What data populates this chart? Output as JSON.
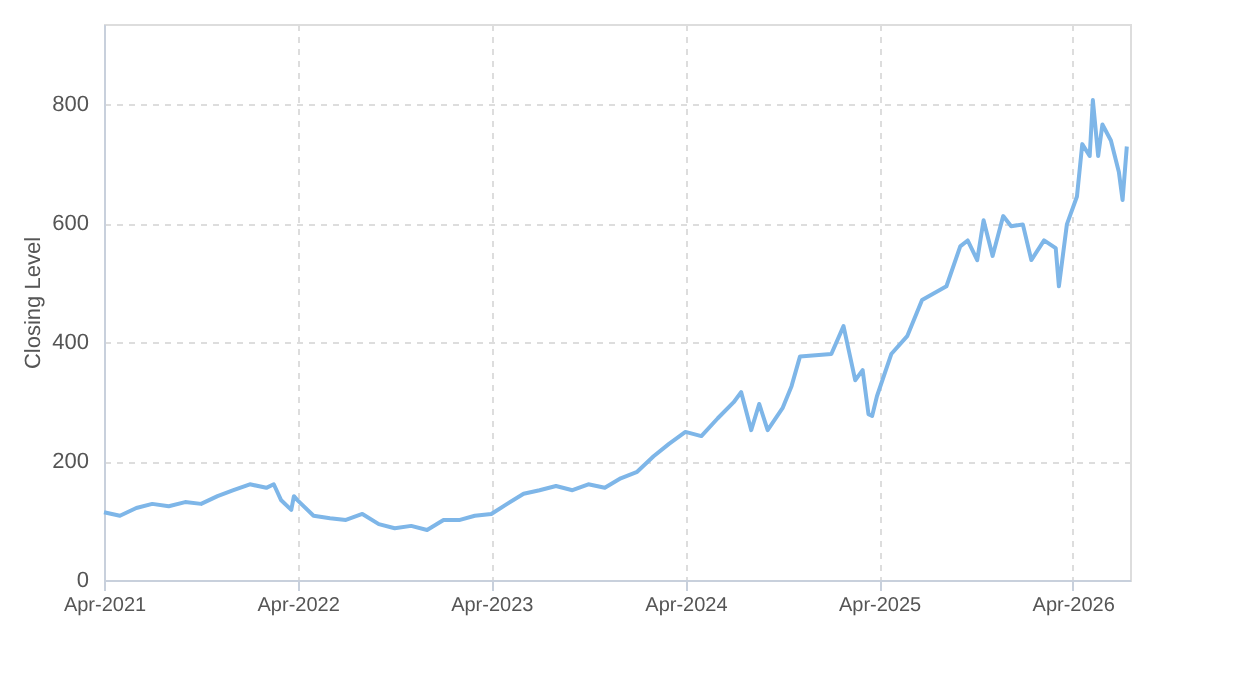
{
  "chart_data": {
    "type": "line",
    "ylabel": "Closing Level",
    "ylim": [
      0,
      935
    ],
    "yticks": [
      0,
      200,
      400,
      600,
      800
    ],
    "xlim": [
      "2021-04-01",
      "2026-07-18"
    ],
    "xticks": [
      {
        "value": "2021-04-01",
        "label": "Apr-2021"
      },
      {
        "value": "2022-04-01",
        "label": "Apr-2022"
      },
      {
        "value": "2023-04-01",
        "label": "Apr-2023"
      },
      {
        "value": "2024-04-01",
        "label": "Apr-2024"
      },
      {
        "value": "2025-04-01",
        "label": "Apr-2025"
      },
      {
        "value": "2026-04-01",
        "label": "Apr-2026"
      }
    ],
    "grid": true,
    "line_style": "solid",
    "marker": "none",
    "x": [
      "2021-04-01",
      "2021-05-01",
      "2021-06-01",
      "2021-07-01",
      "2021-08-01",
      "2021-09-01",
      "2021-10-01",
      "2021-11-01",
      "2021-12-01",
      "2022-01-01",
      "2022-02-01",
      "2022-02-15",
      "2022-03-01",
      "2022-03-20",
      "2022-03-25",
      "2022-04-01",
      "2022-05-01",
      "2022-06-01",
      "2022-07-01",
      "2022-08-01",
      "2022-09-01",
      "2022-10-01",
      "2022-11-01",
      "2022-12-01",
      "2023-01-01",
      "2023-02-01",
      "2023-03-01",
      "2023-04-01",
      "2023-05-01",
      "2023-06-01",
      "2023-07-01",
      "2023-08-01",
      "2023-09-01",
      "2023-10-01",
      "2023-11-01",
      "2023-12-01",
      "2024-01-01",
      "2024-02-01",
      "2024-03-01",
      "2024-04-01",
      "2024-05-01",
      "2024-06-01",
      "2024-07-01",
      "2024-07-15",
      "2024-08-03",
      "2024-08-18",
      "2024-09-03",
      "2024-10-01",
      "2024-10-18",
      "2024-11-03",
      "2025-01-01",
      "2025-01-24",
      "2025-02-15",
      "2025-03-01",
      "2025-03-12",
      "2025-03-19",
      "2025-03-28",
      "2025-04-24",
      "2025-05-24",
      "2025-06-21",
      "2025-08-06",
      "2025-09-01",
      "2025-09-15",
      "2025-10-03",
      "2025-10-15",
      "2025-11-01",
      "2025-11-21",
      "2025-12-06",
      "2025-12-28",
      "2026-01-13",
      "2026-02-06",
      "2026-02-28",
      "2026-03-06",
      "2026-03-21",
      "2026-04-09",
      "2026-04-19",
      "2026-05-03",
      "2026-05-09",
      "2026-05-19",
      "2026-05-27",
      "2026-06-12",
      "2026-06-27",
      "2026-07-04",
      "2026-07-12"
    ],
    "series": [
      {
        "color": "#7eb6e8",
        "values": [
          114,
          108,
          121,
          128,
          124,
          131,
          128,
          141,
          151,
          161,
          155,
          161,
          134,
          118,
          141,
          134,
          108,
          104,
          101,
          111,
          94,
          87,
          91,
          84,
          101,
          101,
          108,
          111,
          128,
          145,
          151,
          158,
          151,
          161,
          155,
          171,
          182,
          208,
          229,
          249,
          242,
          272,
          299,
          316,
          252,
          296,
          252,
          289,
          326,
          376,
          380,
          427,
          336,
          353,
          279,
          276,
          309,
          380,
          410,
          471,
          494,
          561,
          571,
          538,
          605,
          545,
          612,
          595,
          598,
          538,
          571,
          558,
          494,
          598,
          645,
          733,
          713,
          807,
          713,
          766,
          739,
          686,
          639,
          729
        ]
      }
    ]
  }
}
